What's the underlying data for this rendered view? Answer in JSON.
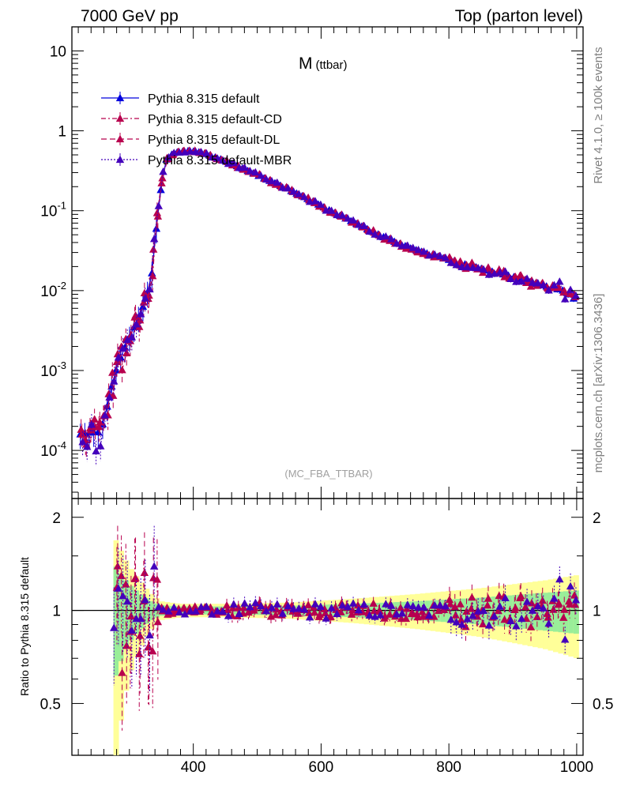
{
  "header": {
    "left": "7000 GeV pp",
    "right": "Top (parton level)"
  },
  "side_labels": {
    "rivet": "Rivet 4.1.0, ≥ 100k events",
    "mcplots": "mcplots.cern.ch [arXiv:1306.3436]"
  },
  "chart_data": {
    "type": "line",
    "title_main": "M",
    "title_sub": "(ttbar)",
    "analysis": "(MC_FBA_TTBAR)",
    "xlabel": "",
    "ylabel_top": "",
    "ylabel_ratio": "Ratio to Pythia 8.315 default",
    "xlim": [
      210,
      1010
    ],
    "ylim_top": [
      2.5e-05,
      20
    ],
    "yscale_top": "log",
    "ylim_ratio": [
      0.34,
      2.3
    ],
    "yscale_ratio": "log",
    "x_ticks": [
      "400",
      "600",
      "800",
      "1000"
    ],
    "y_ticks_top": [
      {
        "base": "10",
        "exp": "-4",
        "value": 0.0001
      },
      {
        "base": "10",
        "exp": "-3",
        "value": 0.001
      },
      {
        "base": "10",
        "exp": "-2",
        "value": 0.01
      },
      {
        "base": "10",
        "exp": "-1",
        "value": 0.1
      },
      {
        "base": "1",
        "exp": "",
        "value": 1
      },
      {
        "base": "10",
        "exp": "",
        "value": 10
      }
    ],
    "y_ticks_ratio": [
      "0.5",
      "1",
      "2"
    ],
    "legend": [
      {
        "label": "Pythia 8.315 default",
        "color": "#0000dd",
        "dash": "solid"
      },
      {
        "label": "Pythia 8.315 default-CD",
        "color": "#b8004e",
        "dash": "6,3,2,3"
      },
      {
        "label": "Pythia 8.315 default-DL",
        "color": "#b8004e",
        "dash": "7,4"
      },
      {
        "label": "Pythia 8.315 default-MBR",
        "color": "#4400bb",
        "dash": "2,2"
      }
    ],
    "curve_knots": {
      "x": [
        225,
        240,
        255,
        265,
        275,
        285,
        295,
        305,
        315,
        325,
        335,
        345,
        355,
        365,
        375,
        390,
        405,
        420,
        440,
        460,
        480,
        500,
        540,
        580,
        620,
        660,
        700,
        740,
        780,
        820,
        860,
        900,
        940,
        980,
        995
      ],
      "y": [
        0.00016,
        0.00017,
        0.00017,
        0.00035,
        0.0008,
        0.0014,
        0.0021,
        0.0032,
        0.0048,
        0.0075,
        0.016,
        0.1,
        0.42,
        0.5,
        0.54,
        0.56,
        0.55,
        0.51,
        0.45,
        0.39,
        0.33,
        0.28,
        0.2,
        0.14,
        0.095,
        0.066,
        0.046,
        0.034,
        0.027,
        0.022,
        0.018,
        0.015,
        0.012,
        0.01,
        0.008
      ]
    },
    "band_x": [
      275,
      283,
      291,
      299,
      307,
      315,
      323,
      331,
      339,
      350,
      380,
      450,
      550,
      650,
      750,
      850,
      950,
      1000
    ],
    "band_green_half": [
      0.42,
      0.35,
      0.28,
      0.22,
      0.18,
      0.14,
      0.11,
      0.08,
      0.06,
      0.04,
      0.03,
      0.03,
      0.035,
      0.05,
      0.07,
      0.1,
      0.14,
      0.16
    ],
    "band_yellow_half": [
      0.75,
      0.62,
      0.5,
      0.4,
      0.32,
      0.26,
      0.2,
      0.15,
      0.11,
      0.07,
      0.05,
      0.05,
      0.06,
      0.09,
      0.13,
      0.18,
      0.25,
      0.3
    ]
  }
}
